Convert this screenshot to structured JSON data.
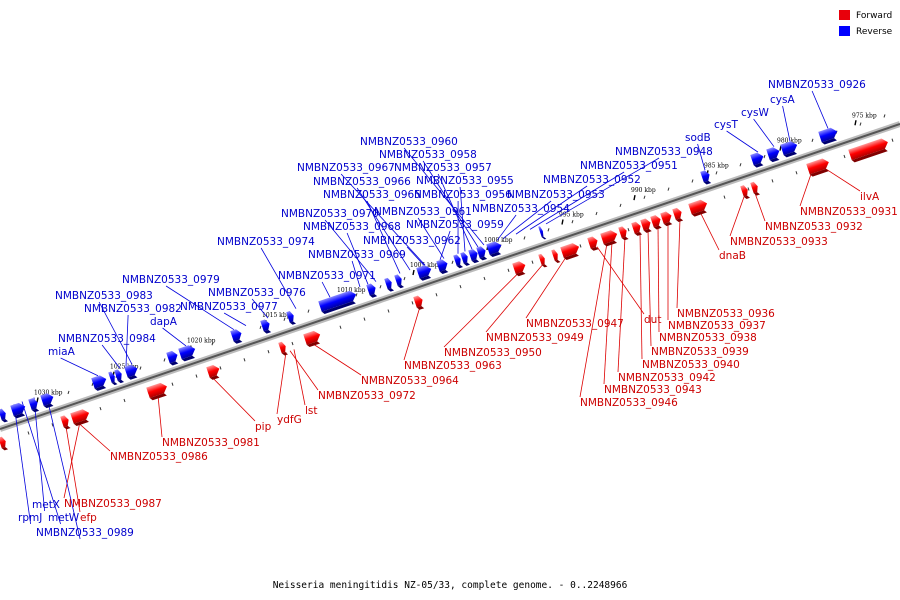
{
  "legend": {
    "items": [
      {
        "label": "Forward",
        "color": "#e8000b"
      },
      {
        "label": "Reverse",
        "color": "#0000ff"
      }
    ]
  },
  "caption": "Neisseria meningitidis NZ-05/33, complete genome. - 0..2248966",
  "colors": {
    "forward": "#ff0000",
    "reverse": "#0000ff",
    "forward_label": "#cc0000",
    "reverse_label": "#0000cc"
  },
  "ticks": [
    "975 kbp",
    "980 kbp",
    "985 kbp",
    "990 kbp",
    "995 kbp",
    "1000 kbp",
    "1005 kbp",
    "1010 kbp",
    "1015 kbp",
    "1020 kbp",
    "1025 kbp",
    "1030 kbp"
  ],
  "forward_labels": [
    "ilvA",
    "NMBNZ0533_0931",
    "NMBNZ0533_0932",
    "NMBNZ0533_0933",
    "dnaB",
    "NMBNZ0533_0936",
    "NMBNZ0533_0937",
    "NMBNZ0533_0938",
    "NMBNZ0533_0939",
    "NMBNZ0533_0940",
    "NMBNZ0533_0942",
    "NMBNZ0533_0943",
    "NMBNZ0533_0946",
    "dut",
    "NMBNZ0533_0947",
    "NMBNZ0533_0949",
    "NMBNZ0533_0950",
    "NMBNZ0533_0963",
    "NMBNZ0533_0964",
    "NMBNZ0533_0972",
    "lst",
    "ydfG",
    "pip",
    "NMBNZ0533_0981",
    "NMBNZ0533_0986",
    "NMBNZ0533_0987",
    "efp"
  ],
  "reverse_labels": [
    "NMBNZ0533_0926",
    "cysA",
    "cysW",
    "cysT",
    "sodB",
    "NMBNZ0533_0948",
    "NMBNZ0533_0951",
    "NMBNZ0533_0952",
    "NMBNZ0533_0953",
    "NMBNZ0533_0954",
    "NMBNZ0533_0960",
    "NMBNZ0533_0958",
    "NMBNZ0533_0957",
    "NMBNZ0533_0967",
    "NMBNZ0533_0955",
    "NMBNZ0533_0966",
    "NMBNZ0533_0965",
    "NMBNZ0533_0956",
    "NMBNZ0533_0970",
    "NMBNZ0533_0961",
    "NMBNZ0533_0968",
    "NMBNZ0533_0959",
    "NMBNZ0533_0974",
    "NMBNZ0533_0962",
    "NMBNZ0533_0969",
    "NMBNZ0533_0971",
    "NMBNZ0533_0979",
    "NMBNZ0533_0976",
    "NMBNZ0533_0983",
    "NMBNZ0533_0982",
    "NMBNZ0533_0977",
    "dapA",
    "NMBNZ0533_0984",
    "miaA",
    "metX",
    "metW",
    "rpmJ",
    "NMBNZ0533_0989"
  ]
}
